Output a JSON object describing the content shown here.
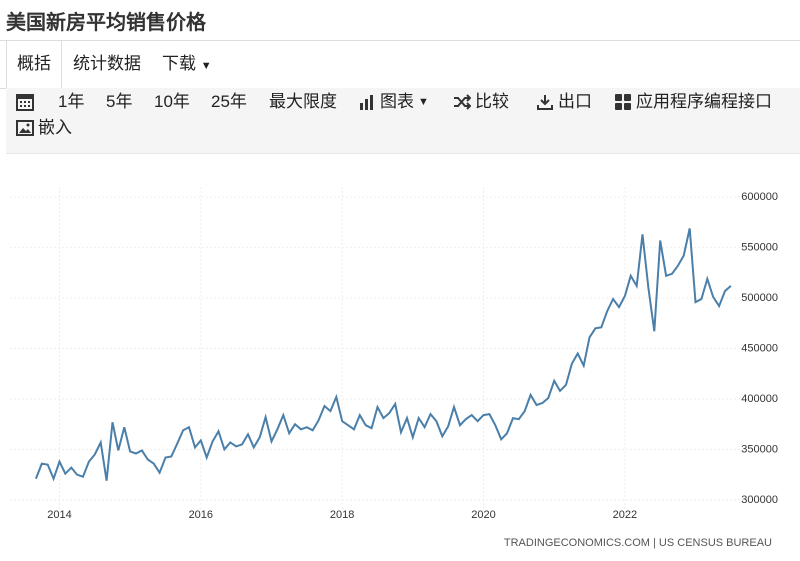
{
  "header": {
    "title": "美国新房平均销售价格"
  },
  "tabs": [
    "概括",
    "统计数据",
    "下载"
  ],
  "toolbar": [
    "1年",
    "5年",
    "10年",
    "25年",
    "最大限度",
    "图表",
    "比较",
    "出口",
    "应用程序编程接口",
    "嵌入"
  ],
  "chart_data": {
    "type": "line",
    "color": "#4a7faa",
    "grid": true,
    "source": "TRADINGECONOMICS.COM | US CENSUS BUREAU",
    "xlim": [
      2013.3,
      2023.7
    ],
    "xticks": [
      2014,
      2016,
      2018,
      2020,
      2022
    ],
    "ylim": [
      290000,
      610000
    ],
    "yticks": [
      300000,
      350000,
      400000,
      450000,
      500000,
      550000,
      600000
    ],
    "x": [
      2013.667,
      2013.75,
      2013.833,
      2013.917,
      2014,
      2014.083,
      2014.167,
      2014.25,
      2014.333,
      2014.417,
      2014.5,
      2014.583,
      2014.667,
      2014.75,
      2014.833,
      2014.917,
      2015,
      2015.083,
      2015.167,
      2015.25,
      2015.333,
      2015.417,
      2015.5,
      2015.583,
      2015.667,
      2015.75,
      2015.833,
      2015.917,
      2016,
      2016.083,
      2016.167,
      2016.25,
      2016.333,
      2016.417,
      2016.5,
      2016.583,
      2016.667,
      2016.75,
      2016.833,
      2016.917,
      2017,
      2017.083,
      2017.167,
      2017.25,
      2017.333,
      2017.417,
      2017.5,
      2017.583,
      2017.667,
      2017.75,
      2017.833,
      2017.917,
      2018,
      2018.083,
      2018.167,
      2018.25,
      2018.333,
      2018.417,
      2018.5,
      2018.583,
      2018.667,
      2018.75,
      2018.833,
      2018.917,
      2019,
      2019.083,
      2019.167,
      2019.25,
      2019.333,
      2019.417,
      2019.5,
      2019.583,
      2019.667,
      2019.75,
      2019.833,
      2019.917,
      2020,
      2020.083,
      2020.167,
      2020.25,
      2020.333,
      2020.417,
      2020.5,
      2020.583,
      2020.667,
      2020.75,
      2020.833,
      2020.917,
      2021,
      2021.083,
      2021.167,
      2021.25,
      2021.333,
      2021.417,
      2021.5,
      2021.583,
      2021.667,
      2021.75,
      2021.833,
      2021.917,
      2022,
      2022.083,
      2022.167,
      2022.25,
      2022.333,
      2022.417,
      2022.5,
      2022.583,
      2022.667,
      2022.75,
      2022.833,
      2022.917,
      2023,
      2023.083,
      2023.167,
      2023.25,
      2023.333,
      2023.417,
      2023.5
    ],
    "values": [
      321000,
      336000,
      335000,
      321000,
      338000,
      326000,
      332000,
      325000,
      323000,
      338000,
      345000,
      357000,
      319000,
      377000,
      349000,
      372000,
      348000,
      346000,
      349000,
      340000,
      336000,
      327000,
      342000,
      343000,
      356000,
      369000,
      372000,
      352000,
      359000,
      342000,
      358000,
      368000,
      350000,
      357000,
      353000,
      355000,
      365000,
      352000,
      362000,
      382000,
      358000,
      370000,
      384000,
      366000,
      375000,
      370000,
      372000,
      369000,
      379000,
      393000,
      388000,
      402000,
      378000,
      374000,
      370000,
      384000,
      374000,
      371000,
      392000,
      381000,
      386000,
      395000,
      367000,
      381000,
      362000,
      381000,
      372000,
      385000,
      378000,
      363000,
      373000,
      392000,
      374000,
      380000,
      384000,
      378000,
      384000,
      385000,
      374000,
      360000,
      366000,
      381000,
      380000,
      388000,
      404000,
      394000,
      396000,
      401000,
      418000,
      408000,
      414000,
      435000,
      445000,
      433000,
      461000,
      470000,
      471000,
      487000,
      499000,
      491000,
      502000,
      522000,
      512000,
      563000,
      510000,
      467000,
      557000,
      522000,
      524000,
      532000,
      542000,
      569000,
      496000,
      499000,
      519000,
      501000,
      492000,
      507000,
      512000
    ]
  }
}
